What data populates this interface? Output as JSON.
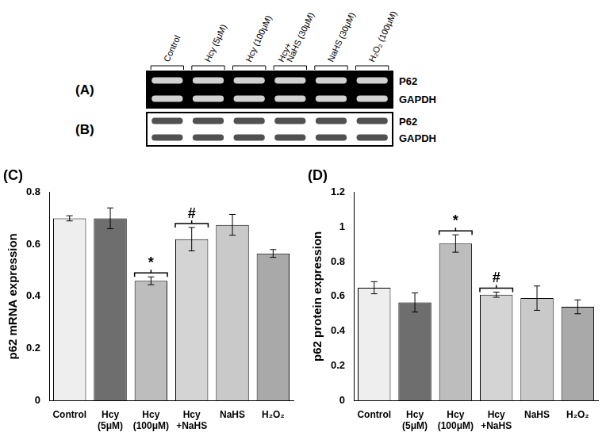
{
  "blots": {
    "lanes": [
      "Control",
      "Hcy (5μM)",
      "Hcy (100μM)",
      "Hcy+\nNaHS (30μM)",
      "NaHS (30μM)",
      "H₂O₂ (100μM)"
    ],
    "panels": [
      {
        "label": "(A)",
        "rows": [
          "P62",
          "GAPDH"
        ],
        "color": "#000000"
      },
      {
        "label": "(B)",
        "rows": [
          "P62",
          "GAPDH"
        ],
        "color": "#ffffff"
      }
    ]
  },
  "chart_data": [
    {
      "type": "bar",
      "title": "(C)",
      "y_label": "p62 mRNA expression",
      "categories": [
        "Control",
        "Hcy\n(5μM)",
        "Hcy\n(100μM)",
        "Hcy\n+NaHS",
        "NaHS",
        "H₂O₂"
      ],
      "values": [
        0.7,
        0.7,
        0.46,
        0.62,
        0.675,
        0.565
      ],
      "error": [
        0.01,
        0.04,
        0.015,
        0.045,
        0.04,
        0.015
      ],
      "significance": [
        null,
        null,
        "*",
        "#",
        null,
        null
      ],
      "colors": [
        "#eeeeee",
        "#6e6e6e",
        "#bdbdbd",
        "#d4d4d4",
        "#c9c9c9",
        "#a9a9a9"
      ],
      "ylim": [
        0,
        0.8
      ],
      "yticks": [
        0,
        0.2,
        0.4,
        0.6,
        0.8
      ],
      "grid": false
    },
    {
      "type": "bar",
      "title": "(D)",
      "y_label": "p62 protein expression",
      "categories": [
        "Control",
        "Hcy\n(5μM)",
        "Hcy\n(100μM)",
        "Hcy\n+NaHS",
        "NaHS",
        "H₂O₂"
      ],
      "values": [
        0.65,
        0.565,
        0.905,
        0.61,
        0.59,
        0.54
      ],
      "error": [
        0.035,
        0.055,
        0.05,
        0.015,
        0.07,
        0.04
      ],
      "significance": [
        null,
        null,
        "*",
        "#",
        null,
        null
      ],
      "colors": [
        "#eeeeee",
        "#6e6e6e",
        "#bdbdbd",
        "#d4d4d4",
        "#c9c9c9",
        "#a9a9a9"
      ],
      "ylim": [
        0,
        1.2
      ],
      "yticks": [
        0,
        0.2,
        0.4,
        0.6,
        0.8,
        1,
        1.2
      ],
      "grid": false
    }
  ]
}
